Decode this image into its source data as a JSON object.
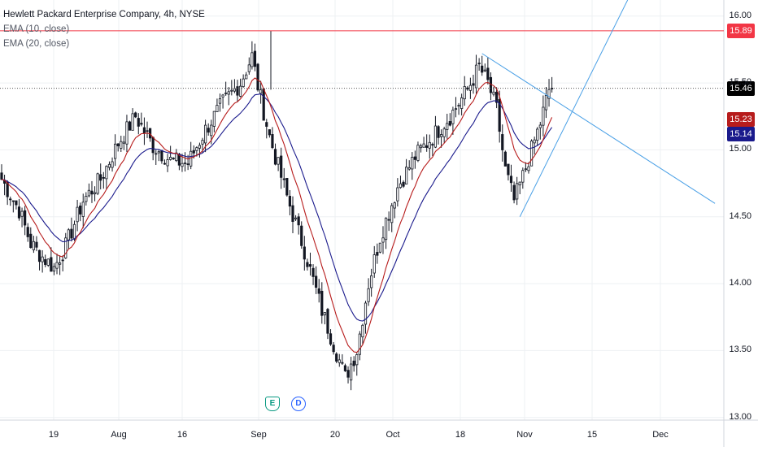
{
  "legend": {
    "title": "Hewlett Packard Enterprise Company, 4h, NYSE",
    "ema_fast": "EMA (10, close)",
    "ema_slow": "EMA (20, close)"
  },
  "price_tags": {
    "resistance": {
      "label": "15.89",
      "color": "#f23645"
    },
    "last": {
      "label": "15.46",
      "color": "#000000"
    },
    "ema10": {
      "label": "15.23",
      "color": "#b71c1c"
    },
    "ema20": {
      "label": "15.14",
      "color": "#1a1a8c"
    }
  },
  "events": {
    "earnings": "E",
    "dividend": "D"
  },
  "colors": {
    "ema10": "#b71c1c",
    "ema20": "#1a1a8c",
    "trendline": "#4aa0e6",
    "resistance": "#f23645",
    "grid": "#eef0f3",
    "candle": "#131722"
  },
  "chart_data": {
    "type": "candlestick",
    "title": "Hewlett Packard Enterprise Company, 4h, NYSE",
    "y_axis": {
      "ticks": [
        "16.00",
        "15.50",
        "15.00",
        "14.50",
        "14.00",
        "13.50",
        "13.00"
      ],
      "range": [
        12.98,
        16.12
      ]
    },
    "x_axis": {
      "ticks": [
        "19",
        "Aug",
        "16",
        "Sep",
        "20",
        "Oct",
        "18",
        "Nov",
        "15",
        "Dec"
      ]
    },
    "horizontal_levels": [
      {
        "name": "resistance",
        "value": 15.89,
        "style": "solid"
      },
      {
        "name": "last-price",
        "value": 15.46,
        "style": "dotted"
      }
    ],
    "keyframes": [
      [
        0,
        14.78
      ],
      [
        6,
        14.55
      ],
      [
        10,
        14.3
      ],
      [
        14,
        14.2
      ],
      [
        18,
        14.12
      ],
      [
        22,
        14.28
      ],
      [
        28,
        14.62
      ],
      [
        34,
        14.78
      ],
      [
        40,
        15.05
      ],
      [
        46,
        15.25
      ],
      [
        52,
        15.03
      ],
      [
        58,
        14.92
      ],
      [
        64,
        14.9
      ],
      [
        70,
        15.15
      ],
      [
        76,
        15.35
      ],
      [
        82,
        15.5
      ],
      [
        86,
        15.7
      ],
      [
        88,
        15.48
      ],
      [
        92,
        15.1
      ],
      [
        98,
        14.65
      ],
      [
        104,
        14.25
      ],
      [
        110,
        13.8
      ],
      [
        114,
        13.55
      ],
      [
        118,
        13.3
      ],
      [
        122,
        13.5
      ],
      [
        126,
        14.0
      ],
      [
        130,
        14.35
      ],
      [
        136,
        14.72
      ],
      [
        142,
        14.95
      ],
      [
        148,
        15.1
      ],
      [
        154,
        15.25
      ],
      [
        160,
        15.45
      ],
      [
        164,
        15.62
      ],
      [
        167,
        15.5
      ],
      [
        170,
        15.3
      ],
      [
        173,
        14.85
      ],
      [
        176,
        14.62
      ],
      [
        179,
        14.8
      ],
      [
        182,
        15.0
      ],
      [
        185,
        15.2
      ],
      [
        188,
        15.45
      ]
    ],
    "series": [
      {
        "name": "EMA (10, close)",
        "last": 15.23
      },
      {
        "name": "EMA (20, close)",
        "last": 15.14
      }
    ],
    "trendlines": [
      {
        "name": "descending",
        "from": [
          165,
          15.72
        ],
        "to": [
          245,
          14.6
        ]
      },
      {
        "name": "ascending",
        "from": [
          178,
          14.5
        ],
        "to": [
          215,
          16.12
        ]
      }
    ]
  }
}
